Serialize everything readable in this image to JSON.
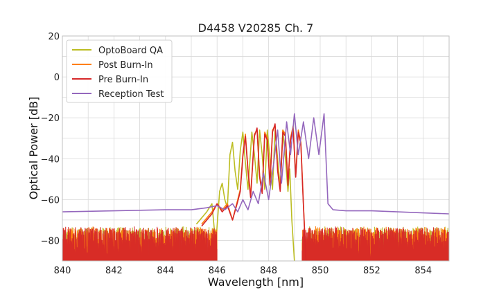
{
  "chart_data": {
    "type": "line",
    "title": "D4458 V20285 Ch. 7",
    "xlabel": "Wavelength [nm]",
    "ylabel": "Optical Power [dB]",
    "xlim": [
      840,
      855
    ],
    "ylim": [
      -90,
      20
    ],
    "xticks": [
      840,
      842,
      844,
      846,
      848,
      850,
      852,
      854
    ],
    "yticks": [
      20,
      0,
      -20,
      -40,
      -60,
      -80
    ],
    "ytick_labels": [
      "20",
      "0",
      "−20",
      "−40",
      "−60",
      "−80"
    ],
    "grid": true,
    "legend_position": "top-left",
    "noise_floor": {
      "low_db": -90,
      "high_db": -73,
      "x_ranges": [
        [
          840,
          846
        ],
        [
          849.3,
          855
        ]
      ]
    },
    "series": [
      {
        "name": "OptoBoard QA",
        "color": "#bcbd22",
        "x": [
          845.2,
          845.6,
          845.8,
          845.95,
          846.1,
          846.2,
          846.3,
          846.4,
          846.5,
          846.6,
          846.7,
          846.8,
          846.9,
          847.0,
          847.1,
          847.2,
          847.35,
          847.45,
          847.55,
          847.65,
          847.75,
          847.85,
          847.95,
          848.05,
          848.15,
          848.25,
          848.35,
          848.45,
          848.55,
          848.65,
          848.75,
          848.82,
          848.9,
          849.0
        ],
        "y": [
          -72,
          -66,
          -62,
          -82,
          -56,
          -52,
          -60,
          -64,
          -38,
          -32,
          -46,
          -55,
          -36,
          -27,
          -42,
          -55,
          -27,
          -38,
          -52,
          -26,
          -38,
          -55,
          -26,
          -40,
          -55,
          -26,
          -40,
          -54,
          -26,
          -40,
          -56,
          -45,
          -70,
          -90
        ]
      },
      {
        "name": "Post Burn-In",
        "color": "#ff7f0e",
        "x": [
          845.4,
          845.8,
          846.0,
          846.2,
          846.4,
          846.6,
          846.8,
          846.9,
          847.0,
          847.1,
          847.2,
          847.3,
          847.45,
          847.55,
          847.65,
          847.75,
          847.85,
          847.95,
          848.05,
          848.15,
          848.25,
          848.35,
          848.45,
          848.55,
          848.65,
          848.75,
          848.85,
          848.95,
          849.05,
          849.15,
          849.25,
          849.35,
          849.45
        ],
        "y": [
          -72,
          -66,
          -62,
          -65,
          -62,
          -70,
          -60,
          -55,
          -38,
          -28,
          -45,
          -58,
          -28,
          -26,
          -48,
          -56,
          -27,
          -30,
          -52,
          -26,
          -24,
          -45,
          -55,
          -26,
          -28,
          -52,
          -30,
          -24,
          -48,
          -26,
          -32,
          -62,
          -90
        ]
      },
      {
        "name": "Pre Burn-In",
        "color": "#d62728",
        "x": [
          845.4,
          845.8,
          846.0,
          846.2,
          846.4,
          846.6,
          846.8,
          846.9,
          847.0,
          847.1,
          847.2,
          847.3,
          847.45,
          847.55,
          847.65,
          847.75,
          847.85,
          847.95,
          848.05,
          848.15,
          848.25,
          848.35,
          848.45,
          848.55,
          848.65,
          848.75,
          848.85,
          848.95,
          849.05,
          849.15,
          849.25,
          849.35,
          849.45
        ],
        "y": [
          -73,
          -67,
          -62,
          -66,
          -63,
          -70,
          -61,
          -56,
          -39,
          -29,
          -46,
          -59,
          -29,
          -25,
          -49,
          -57,
          -28,
          -31,
          -53,
          -27,
          -23,
          -46,
          -56,
          -27,
          -29,
          -53,
          -31,
          -25,
          -49,
          -27,
          -33,
          -63,
          -90
        ]
      },
      {
        "name": "Reception Test",
        "color": "#9467bd",
        "x": [
          840,
          842,
          844,
          845,
          845.6,
          846.0,
          846.3,
          846.6,
          846.8,
          847.0,
          847.2,
          847.4,
          847.6,
          847.8,
          848.0,
          848.2,
          848.35,
          848.5,
          848.7,
          848.85,
          849.0,
          849.15,
          849.35,
          849.55,
          849.75,
          849.95,
          850.15,
          850.3,
          850.5,
          851,
          852,
          853,
          854,
          855
        ],
        "y": [
          -66,
          -65.5,
          -65,
          -65,
          -64,
          -63,
          -65,
          -62,
          -66,
          -60,
          -65,
          -56,
          -62,
          -47,
          -60,
          -42,
          -26,
          -52,
          -22,
          -38,
          -18,
          -38,
          -22,
          -40,
          -20,
          -38,
          -18,
          -62,
          -65,
          -65.5,
          -65.5,
          -66,
          -66.5,
          -67
        ]
      }
    ]
  }
}
